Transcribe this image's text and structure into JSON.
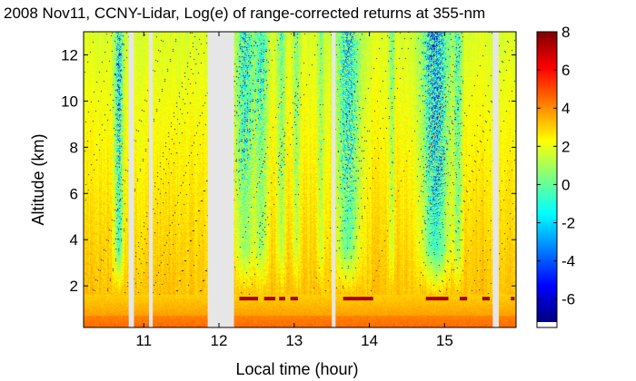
{
  "chart_data": {
    "type": "heatmap",
    "title": "2008 Nov11, CCNY-Lidar, Log(e) of range-corrected returns at 355-nm",
    "xlabel": "Local time (hour)",
    "ylabel": "Altitude (km)",
    "xlim": [
      10.2,
      15.95
    ],
    "ylim": [
      0.2,
      13.0
    ],
    "x_ticks": [
      11,
      12,
      13,
      14,
      15
    ],
    "x_tick_labels": [
      "11",
      "12",
      "13",
      "14",
      "15"
    ],
    "y_ticks": [
      2,
      4,
      6,
      8,
      10,
      12
    ],
    "y_tick_labels": [
      "2",
      "4",
      "6",
      "8",
      "10",
      "12"
    ],
    "colorbar": {
      "colormap": "jet",
      "range": [
        -7.2,
        8.0
      ],
      "ticks": [
        8,
        6,
        4,
        2,
        0,
        -2,
        -4,
        -6
      ],
      "tick_labels": [
        "8",
        "6",
        "4",
        "2",
        "0",
        "-2",
        "-4",
        "-6"
      ]
    },
    "data_gaps": [
      {
        "x_start": 10.8,
        "x_end": 10.87
      },
      {
        "x_start": 11.07,
        "x_end": 11.12
      },
      {
        "x_start": 11.85,
        "x_end": 12.2
      },
      {
        "x_start": 13.5,
        "x_end": 13.55
      },
      {
        "x_start": 15.64,
        "x_end": 15.72
      }
    ],
    "cloud_layer": {
      "altitude_km": 1.45,
      "value": 7.5,
      "segments": [
        {
          "x_start": 12.27,
          "x_end": 12.52
        },
        {
          "x_start": 12.6,
          "x_end": 12.75
        },
        {
          "x_start": 12.8,
          "x_end": 12.88
        },
        {
          "x_start": 12.95,
          "x_end": 13.05
        },
        {
          "x_start": 13.65,
          "x_end": 14.05
        },
        {
          "x_start": 14.75,
          "x_end": 15.05
        },
        {
          "x_start": 15.2,
          "x_end": 15.3
        },
        {
          "x_start": 15.5,
          "x_end": 15.6
        },
        {
          "x_start": 15.88,
          "x_end": 15.93
        }
      ]
    },
    "boundary_layer": {
      "top_km": 1.6,
      "value_near_surface": 4.3
    },
    "plumes": [
      {
        "x": 10.67,
        "width": 0.08,
        "strength": 1.0
      },
      {
        "x": 12.35,
        "width": 0.18,
        "strength": 0.7
      },
      {
        "x": 12.57,
        "width": 0.12,
        "strength": 0.6
      },
      {
        "x": 12.83,
        "width": 0.08,
        "strength": 0.5
      },
      {
        "x": 13.03,
        "width": 0.07,
        "strength": 0.45
      },
      {
        "x": 13.35,
        "width": 0.06,
        "strength": 0.4
      },
      {
        "x": 13.72,
        "width": 0.22,
        "strength": 0.85
      },
      {
        "x": 14.3,
        "width": 0.05,
        "strength": 0.4
      },
      {
        "x": 14.88,
        "width": 0.25,
        "strength": 1.1
      },
      {
        "x": 15.18,
        "width": 0.08,
        "strength": 0.6
      }
    ]
  }
}
